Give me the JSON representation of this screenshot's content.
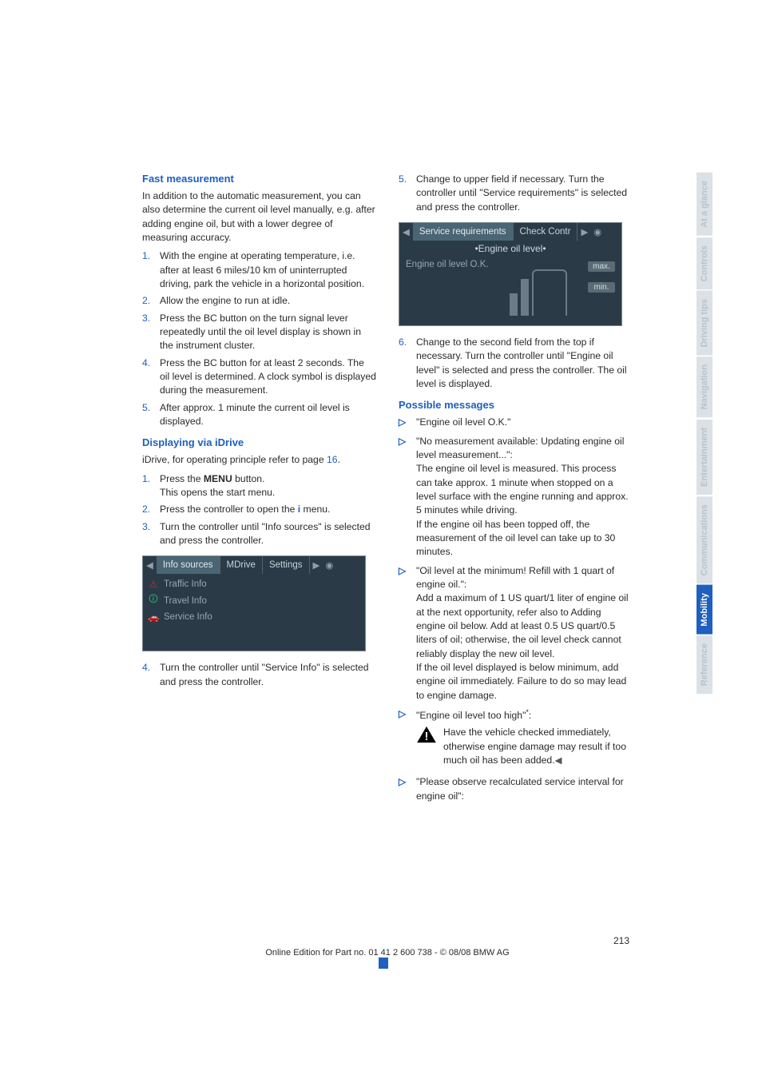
{
  "col1": {
    "h1": "Fast measurement",
    "p1": "In addition to the automatic measurement, you can also determine the current oil level manually, e.g. after adding engine oil, but with a lower degree of measuring accuracy.",
    "list1": [
      "With the engine at operating temperature, i.e. after at least 6 miles/10 km of uninterrupted driving, park the vehicle in a horizontal position.",
      "Allow the engine to run at idle.",
      "Press the BC button on the turn signal lever repeatedly until the oil level display is shown in the instrument cluster.",
      "Press the BC button for at least 2 seconds. The oil level is determined. A clock symbol is displayed during the measurement.",
      "After approx. 1 minute the current oil level is displayed."
    ],
    "h2": "Displaying via iDrive",
    "p2a": "iDrive, for operating principle refer to page ",
    "p2link": "16",
    "p2b": ".",
    "list2a": "Press the ",
    "list2a_btn": "MENU",
    "list2a_end": " button.",
    "list2a_line2": "This opens the start menu.",
    "list2b": "Press the controller to open the ",
    "list2b_end": " menu.",
    "list2c": "Turn the controller until \"Info sources\" is selected and press the controller.",
    "ss1": {
      "tabs": [
        "Info sources",
        "MDrive",
        "Settings"
      ],
      "rows": [
        "Traffic Info",
        "Travel Info",
        "Service Info"
      ]
    },
    "item4": "Turn the controller until \"Service Info\" is selected and press the controller."
  },
  "col2": {
    "item5": "Change to upper field if necessary. Turn the controller until \"Service requirements\" is selected and press the controller.",
    "ss2": {
      "tabs": [
        "Service requirements",
        "Check Contr"
      ],
      "subtitle": "Engine oil level",
      "status": "Engine oil level O.K.",
      "max": "max.",
      "min": "min."
    },
    "item6": "Change to the second field from the top if necessary. Turn the controller until \"Engine oil level\" is selected and press the controller. The oil level is displayed.",
    "h3": "Possible messages",
    "msgs": [
      {
        "lead": "\"Engine oil level O.K.\""
      },
      {
        "lead": "\"No measurement available: Updating engine oil level measurement...\":",
        "body": "The engine oil level is measured. This process can take approx. 1 minute when stopped on a level surface with the engine running and approx. 5 minutes while driving.",
        "body2": "If the engine oil has been topped off, the measurement of the oil level can take up to 30 minutes."
      },
      {
        "lead": "\"Oil level at the minimum! Refill with 1 quart of engine oil.\":",
        "body": "Add a maximum of 1 US quart/1 liter of engine oil at the next opportunity, refer also to Adding engine oil below. Add at least 0.5 US quart/0.5 liters of oil; otherwise, the oil level check cannot reliably display the new oil level.",
        "body2": "If the oil level displayed is below minimum, add engine oil immediately. Failure to do so may lead to engine damage."
      },
      {
        "lead": "\"Engine oil level too high\"",
        "star": "*",
        "colon": ":",
        "warn": "Have the vehicle checked immediately, otherwise engine damage may result if too much oil has been added."
      },
      {
        "lead": "\"Please observe recalculated service interval for engine oil\":"
      }
    ]
  },
  "footer": {
    "page": "213",
    "line": "Online Edition for Part no. 01 41 2 600 738 - © 08/08 BMW AG"
  },
  "sidetabs": [
    "At a glance",
    "Controls",
    "Driving tips",
    "Navigation",
    "Entertainment",
    "Communications",
    "Mobility",
    "Reference"
  ],
  "sidetab_active": 6,
  "colors": {
    "blue": "#1e5fbf",
    "tabgrey": "#dce1e6",
    "tabgreytext": "#b9c2cb"
  }
}
